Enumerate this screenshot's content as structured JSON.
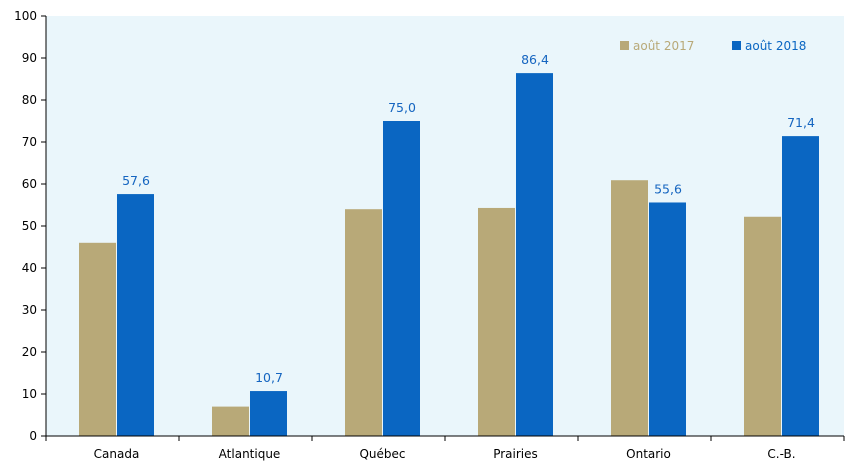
{
  "chart_data": {
    "type": "bar",
    "title": "",
    "xlabel": "",
    "ylabel": "",
    "ylim": [
      0,
      100
    ],
    "y_ticks": [
      "0",
      "10",
      "20",
      "30",
      "40",
      "50",
      "60",
      "70",
      "80",
      "90",
      "100"
    ],
    "categories": [
      "Canada",
      "Atlantique",
      "Québec",
      "Prairies",
      "Ontario",
      "C.-B."
    ],
    "series": [
      {
        "name": "août 2017",
        "color": "#b8a978",
        "values": [
          46.0,
          7.0,
          54.0,
          54.3,
          60.9,
          52.2
        ],
        "labels": [
          "",
          "",
          "",
          "",
          "",
          ""
        ]
      },
      {
        "name": "août 2018",
        "color": "#0a66c2",
        "values": [
          57.6,
          10.7,
          75.0,
          86.4,
          55.6,
          71.4
        ],
        "labels": [
          "57,6",
          "10,7",
          "75,0",
          "86,4",
          "55,6",
          "71,4"
        ]
      }
    ],
    "legend_position": "top-right",
    "grid": false,
    "plot_background": "#eaf6fb",
    "label_color": "#1565c0"
  }
}
